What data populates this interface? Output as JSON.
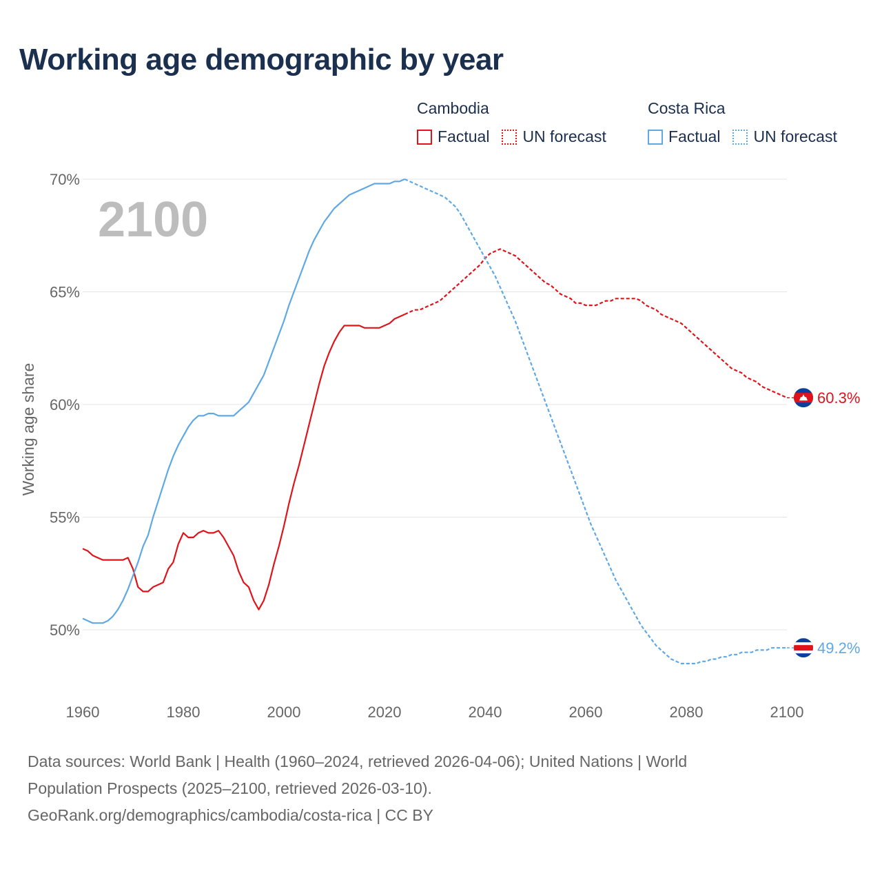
{
  "title": "Working age demographic by year",
  "year_watermark": "2100",
  "legend": {
    "groups": [
      {
        "country": "Cambodia",
        "factual_label": "Factual",
        "forecast_label": "UN forecast",
        "color": "#e0131a"
      },
      {
        "country": "Costa Rica",
        "factual_label": "Factual",
        "forecast_label": "UN forecast",
        "color": "#5fa8e6"
      }
    ]
  },
  "sources": {
    "line1": "Data sources: World Bank | Health (1960–2024, retrieved 2026-04-06); United Nations | World",
    "line2": "Population Prospects (2025–2100, retrieved 2026-03-10).",
    "line3": "GeoRank.org/demographics/cambodia/costa-rica | CC BY"
  },
  "chart_data": {
    "type": "line",
    "title": "Working age demographic by year",
    "xlabel": "",
    "ylabel": "Working age share",
    "xlim": [
      1960,
      2100
    ],
    "ylim": [
      47.5,
      70
    ],
    "x_ticks": [
      "1960",
      "1980",
      "2000",
      "2020",
      "2040",
      "2060",
      "2080",
      "2100"
    ],
    "y_ticks": [
      "50%",
      "55%",
      "60%",
      "65%",
      "70%"
    ],
    "y_tick_values": [
      50,
      55,
      60,
      65,
      70
    ],
    "x_tick_values": [
      1960,
      1980,
      2000,
      2020,
      2040,
      2060,
      2080,
      2100
    ],
    "grid": true,
    "factual_end_year": 2024,
    "series": [
      {
        "name": "Cambodia",
        "color": "#e0131a",
        "end_label": "60.3%",
        "flag": "cambodia-flag",
        "points": [
          [
            1960,
            53.6
          ],
          [
            1961,
            53.5
          ],
          [
            1962,
            53.3
          ],
          [
            1963,
            53.2
          ],
          [
            1964,
            53.1
          ],
          [
            1965,
            53.1
          ],
          [
            1966,
            53.1
          ],
          [
            1967,
            53.1
          ],
          [
            1968,
            53.1
          ],
          [
            1969,
            53.2
          ],
          [
            1970,
            52.7
          ],
          [
            1971,
            51.9
          ],
          [
            1972,
            51.7
          ],
          [
            1973,
            51.7
          ],
          [
            1974,
            51.9
          ],
          [
            1975,
            52.0
          ],
          [
            1976,
            52.1
          ],
          [
            1977,
            52.7
          ],
          [
            1978,
            53.0
          ],
          [
            1979,
            53.8
          ],
          [
            1980,
            54.3
          ],
          [
            1981,
            54.1
          ],
          [
            1982,
            54.1
          ],
          [
            1983,
            54.3
          ],
          [
            1984,
            54.4
          ],
          [
            1985,
            54.3
          ],
          [
            1986,
            54.3
          ],
          [
            1987,
            54.4
          ],
          [
            1988,
            54.1
          ],
          [
            1989,
            53.7
          ],
          [
            1990,
            53.3
          ],
          [
            1991,
            52.6
          ],
          [
            1992,
            52.1
          ],
          [
            1993,
            51.9
          ],
          [
            1994,
            51.3
          ],
          [
            1995,
            50.9
          ],
          [
            1996,
            51.3
          ],
          [
            1997,
            52.0
          ],
          [
            1998,
            52.9
          ],
          [
            1999,
            53.7
          ],
          [
            2000,
            54.6
          ],
          [
            2001,
            55.6
          ],
          [
            2002,
            56.5
          ],
          [
            2003,
            57.3
          ],
          [
            2004,
            58.2
          ],
          [
            2005,
            59.1
          ],
          [
            2006,
            60.0
          ],
          [
            2007,
            60.9
          ],
          [
            2008,
            61.7
          ],
          [
            2009,
            62.3
          ],
          [
            2010,
            62.8
          ],
          [
            2011,
            63.2
          ],
          [
            2012,
            63.5
          ],
          [
            2013,
            63.5
          ],
          [
            2014,
            63.5
          ],
          [
            2015,
            63.5
          ],
          [
            2016,
            63.4
          ],
          [
            2017,
            63.4
          ],
          [
            2018,
            63.4
          ],
          [
            2019,
            63.4
          ],
          [
            2020,
            63.5
          ],
          [
            2021,
            63.6
          ],
          [
            2022,
            63.8
          ],
          [
            2023,
            63.9
          ],
          [
            2024,
            64.0
          ],
          [
            2025,
            64.1
          ],
          [
            2026,
            64.2
          ],
          [
            2027,
            64.2
          ],
          [
            2028,
            64.3
          ],
          [
            2029,
            64.4
          ],
          [
            2030,
            64.5
          ],
          [
            2031,
            64.6
          ],
          [
            2032,
            64.8
          ],
          [
            2033,
            65.0
          ],
          [
            2034,
            65.2
          ],
          [
            2035,
            65.4
          ],
          [
            2036,
            65.6
          ],
          [
            2037,
            65.8
          ],
          [
            2038,
            66.0
          ],
          [
            2039,
            66.2
          ],
          [
            2040,
            66.5
          ],
          [
            2041,
            66.7
          ],
          [
            2042,
            66.8
          ],
          [
            2043,
            66.9
          ],
          [
            2044,
            66.8
          ],
          [
            2045,
            66.7
          ],
          [
            2046,
            66.6
          ],
          [
            2047,
            66.4
          ],
          [
            2048,
            66.2
          ],
          [
            2049,
            66.0
          ],
          [
            2050,
            65.8
          ],
          [
            2051,
            65.6
          ],
          [
            2052,
            65.4
          ],
          [
            2053,
            65.3
          ],
          [
            2054,
            65.1
          ],
          [
            2055,
            64.9
          ],
          [
            2056,
            64.8
          ],
          [
            2057,
            64.7
          ],
          [
            2058,
            64.5
          ],
          [
            2059,
            64.5
          ],
          [
            2060,
            64.4
          ],
          [
            2061,
            64.4
          ],
          [
            2062,
            64.4
          ],
          [
            2063,
            64.5
          ],
          [
            2064,
            64.6
          ],
          [
            2065,
            64.6
          ],
          [
            2066,
            64.7
          ],
          [
            2067,
            64.7
          ],
          [
            2068,
            64.7
          ],
          [
            2069,
            64.7
          ],
          [
            2070,
            64.7
          ],
          [
            2071,
            64.6
          ],
          [
            2072,
            64.4
          ],
          [
            2073,
            64.3
          ],
          [
            2074,
            64.2
          ],
          [
            2075,
            64.0
          ],
          [
            2076,
            63.9
          ],
          [
            2077,
            63.8
          ],
          [
            2078,
            63.7
          ],
          [
            2079,
            63.6
          ],
          [
            2080,
            63.4
          ],
          [
            2081,
            63.2
          ],
          [
            2082,
            63.0
          ],
          [
            2083,
            62.8
          ],
          [
            2084,
            62.6
          ],
          [
            2085,
            62.4
          ],
          [
            2086,
            62.2
          ],
          [
            2087,
            62.0
          ],
          [
            2088,
            61.8
          ],
          [
            2089,
            61.6
          ],
          [
            2090,
            61.5
          ],
          [
            2091,
            61.4
          ],
          [
            2092,
            61.2
          ],
          [
            2093,
            61.1
          ],
          [
            2094,
            61.0
          ],
          [
            2095,
            60.8
          ],
          [
            2096,
            60.7
          ],
          [
            2097,
            60.6
          ],
          [
            2098,
            60.5
          ],
          [
            2099,
            60.4
          ],
          [
            2100,
            60.3
          ]
        ]
      },
      {
        "name": "Costa Rica",
        "color": "#5fa8e6",
        "end_label": "49.2%",
        "flag": "costa-rica-flag",
        "points": [
          [
            1960,
            50.5
          ],
          [
            1961,
            50.4
          ],
          [
            1962,
            50.3
          ],
          [
            1963,
            50.3
          ],
          [
            1964,
            50.3
          ],
          [
            1965,
            50.4
          ],
          [
            1966,
            50.6
          ],
          [
            1967,
            50.9
          ],
          [
            1968,
            51.3
          ],
          [
            1969,
            51.8
          ],
          [
            1970,
            52.4
          ],
          [
            1971,
            53.0
          ],
          [
            1972,
            53.7
          ],
          [
            1973,
            54.2
          ],
          [
            1974,
            55.0
          ],
          [
            1975,
            55.7
          ],
          [
            1976,
            56.4
          ],
          [
            1977,
            57.1
          ],
          [
            1978,
            57.7
          ],
          [
            1979,
            58.2
          ],
          [
            1980,
            58.6
          ],
          [
            1981,
            59.0
          ],
          [
            1982,
            59.3
          ],
          [
            1983,
            59.5
          ],
          [
            1984,
            59.5
          ],
          [
            1985,
            59.6
          ],
          [
            1986,
            59.6
          ],
          [
            1987,
            59.5
          ],
          [
            1988,
            59.5
          ],
          [
            1989,
            59.5
          ],
          [
            1990,
            59.5
          ],
          [
            1991,
            59.7
          ],
          [
            1992,
            59.9
          ],
          [
            1993,
            60.1
          ],
          [
            1994,
            60.5
          ],
          [
            1995,
            60.9
          ],
          [
            1996,
            61.3
          ],
          [
            1997,
            61.9
          ],
          [
            1998,
            62.5
          ],
          [
            1999,
            63.1
          ],
          [
            2000,
            63.7
          ],
          [
            2001,
            64.4
          ],
          [
            2002,
            65.0
          ],
          [
            2003,
            65.6
          ],
          [
            2004,
            66.2
          ],
          [
            2005,
            66.8
          ],
          [
            2006,
            67.3
          ],
          [
            2007,
            67.7
          ],
          [
            2008,
            68.1
          ],
          [
            2009,
            68.4
          ],
          [
            2010,
            68.7
          ],
          [
            2011,
            68.9
          ],
          [
            2012,
            69.1
          ],
          [
            2013,
            69.3
          ],
          [
            2014,
            69.4
          ],
          [
            2015,
            69.5
          ],
          [
            2016,
            69.6
          ],
          [
            2017,
            69.7
          ],
          [
            2018,
            69.8
          ],
          [
            2019,
            69.8
          ],
          [
            2020,
            69.8
          ],
          [
            2021,
            69.8
          ],
          [
            2022,
            69.9
          ],
          [
            2023,
            69.9
          ],
          [
            2024,
            70.0
          ],
          [
            2025,
            69.9
          ],
          [
            2026,
            69.8
          ],
          [
            2027,
            69.7
          ],
          [
            2028,
            69.6
          ],
          [
            2029,
            69.5
          ],
          [
            2030,
            69.4
          ],
          [
            2031,
            69.3
          ],
          [
            2032,
            69.2
          ],
          [
            2033,
            69.0
          ],
          [
            2034,
            68.8
          ],
          [
            2035,
            68.5
          ],
          [
            2036,
            68.1
          ],
          [
            2037,
            67.7
          ],
          [
            2038,
            67.3
          ],
          [
            2039,
            66.9
          ],
          [
            2040,
            66.5
          ],
          [
            2041,
            66.1
          ],
          [
            2042,
            65.7
          ],
          [
            2043,
            65.2
          ],
          [
            2044,
            64.7
          ],
          [
            2045,
            64.2
          ],
          [
            2046,
            63.7
          ],
          [
            2047,
            63.1
          ],
          [
            2048,
            62.5
          ],
          [
            2049,
            61.9
          ],
          [
            2050,
            61.3
          ],
          [
            2051,
            60.7
          ],
          [
            2052,
            60.1
          ],
          [
            2053,
            59.5
          ],
          [
            2054,
            58.9
          ],
          [
            2055,
            58.3
          ],
          [
            2056,
            57.7
          ],
          [
            2057,
            57.1
          ],
          [
            2058,
            56.5
          ],
          [
            2059,
            55.9
          ],
          [
            2060,
            55.3
          ],
          [
            2061,
            54.7
          ],
          [
            2062,
            54.2
          ],
          [
            2063,
            53.7
          ],
          [
            2064,
            53.2
          ],
          [
            2065,
            52.7
          ],
          [
            2066,
            52.2
          ],
          [
            2067,
            51.8
          ],
          [
            2068,
            51.4
          ],
          [
            2069,
            51.0
          ],
          [
            2070,
            50.6
          ],
          [
            2071,
            50.2
          ],
          [
            2072,
            49.9
          ],
          [
            2073,
            49.6
          ],
          [
            2074,
            49.3
          ],
          [
            2075,
            49.1
          ],
          [
            2076,
            48.9
          ],
          [
            2077,
            48.7
          ],
          [
            2078,
            48.6
          ],
          [
            2079,
            48.5
          ],
          [
            2080,
            48.5
          ],
          [
            2081,
            48.5
          ],
          [
            2082,
            48.5
          ],
          [
            2083,
            48.6
          ],
          [
            2084,
            48.6
          ],
          [
            2085,
            48.7
          ],
          [
            2086,
            48.7
          ],
          [
            2087,
            48.8
          ],
          [
            2088,
            48.8
          ],
          [
            2089,
            48.9
          ],
          [
            2090,
            48.9
          ],
          [
            2091,
            49.0
          ],
          [
            2092,
            49.0
          ],
          [
            2093,
            49.0
          ],
          [
            2094,
            49.1
          ],
          [
            2095,
            49.1
          ],
          [
            2096,
            49.1
          ],
          [
            2097,
            49.2
          ],
          [
            2098,
            49.2
          ],
          [
            2099,
            49.2
          ],
          [
            2100,
            49.2
          ]
        ]
      }
    ]
  }
}
